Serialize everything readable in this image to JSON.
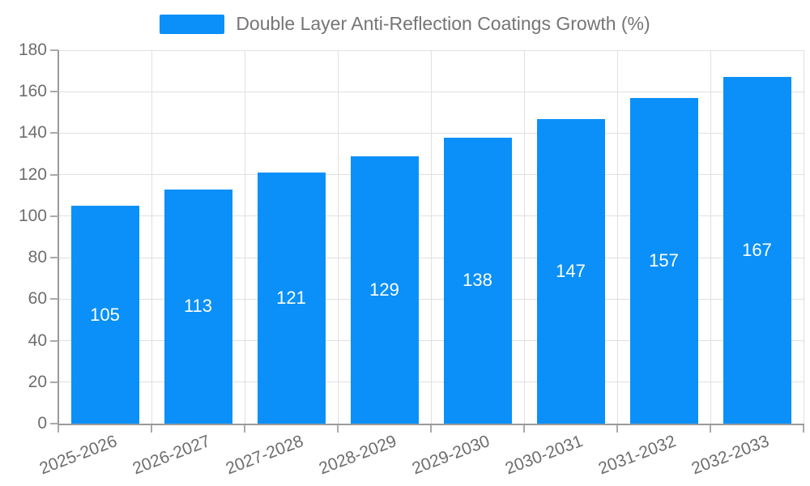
{
  "chart_data": {
    "type": "bar",
    "title": "Double Layer Anti-Reflection Coatings Growth (%)",
    "categories": [
      "2025-2026",
      "2026-2027",
      "2027-2028",
      "2028-2029",
      "2029-2030",
      "2030-2031",
      "2031-2032",
      "2032-2033"
    ],
    "values": [
      105,
      113,
      121,
      129,
      138,
      147,
      157,
      167
    ],
    "xlabel": "",
    "ylabel": "",
    "ylim": [
      0,
      180
    ],
    "ytick_step": 20,
    "ytick_labels": [
      "0",
      "20",
      "40",
      "60",
      "80",
      "100",
      "120",
      "140",
      "160",
      "180"
    ],
    "grid": true,
    "legend_position": "top-center",
    "bar_label_position": "inside-center",
    "colors": {
      "bar": "#0a90f8",
      "bar_label": "#ffffff",
      "axis_text": "#6e6e6e",
      "legend_text": "#757575",
      "grid_line": "#e0e0e0",
      "axis_line": "#999999",
      "tick_mark": "#aaaaaa",
      "background": "#ffffff"
    }
  }
}
